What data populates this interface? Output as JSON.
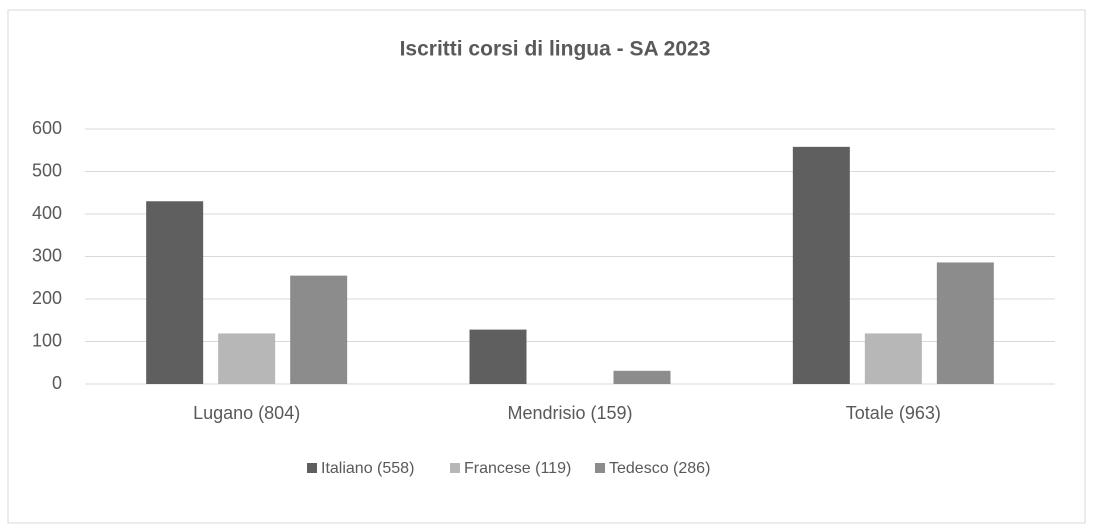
{
  "chart_data": {
    "type": "bar",
    "title": "Iscritti corsi di lingua - SA 2023",
    "categories": [
      "Lugano (804)",
      "Mendrisio (159)",
      "Totale (963)"
    ],
    "series": [
      {
        "name": "Italiano (558)",
        "color": "#5f5f5f",
        "values": [
          430,
          128,
          558
        ]
      },
      {
        "name": "Francese (119)",
        "color": "#b7b7b7",
        "values": [
          119,
          0,
          119
        ]
      },
      {
        "name": "Tedesco (286)",
        "color": "#8c8c8c",
        "values": [
          255,
          31,
          286
        ]
      }
    ],
    "ylim": [
      0,
      600
    ],
    "yticks": [
      0,
      100,
      200,
      300,
      400,
      500,
      600
    ],
    "grid": true,
    "legend": "bottom"
  }
}
